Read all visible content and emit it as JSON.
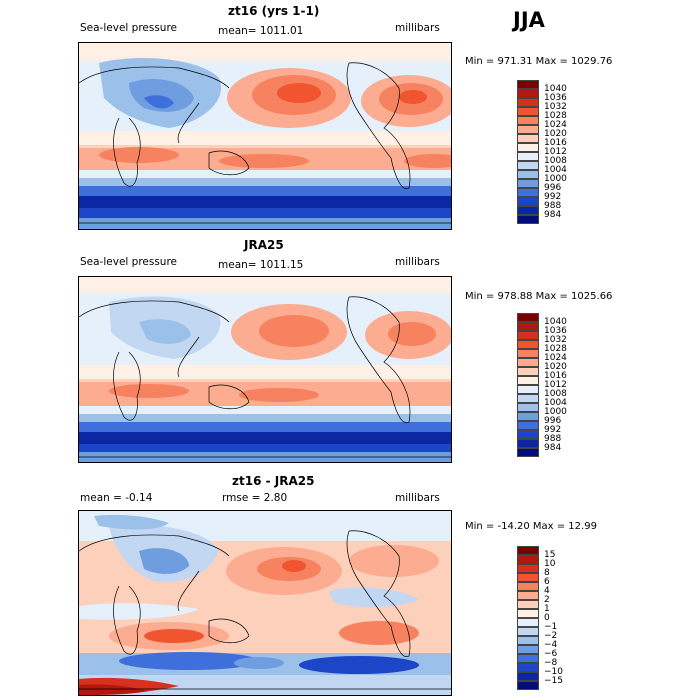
{
  "season": "JJA",
  "panels": [
    {
      "title": "zt16 (yrs 1-1)",
      "left": "Sea-level pressure",
      "center": "mean= 1011.01",
      "right": "millibars",
      "minmax": "Min = 971.31 Max = 1029.76",
      "colorbar": {
        "labels": [
          "1040",
          "1036",
          "1032",
          "1028",
          "1024",
          "1020",
          "1016",
          "1012",
          "1008",
          "1004",
          "1000",
          "996",
          "992",
          "988",
          "984"
        ],
        "colors": [
          "#7a0000",
          "#b2180c",
          "#d7301f",
          "#f0552f",
          "#f7825f",
          "#fcac90",
          "#fdd0bc",
          "#fff0e5",
          "#e5f0fb",
          "#c2d8f2",
          "#9bc0ea",
          "#6f9ee0",
          "#3f6fdb",
          "#1c45c8",
          "#0a28a4",
          "#000c7a"
        ]
      }
    },
    {
      "title": "JRA25",
      "left": "Sea-level pressure",
      "center": "mean= 1011.15",
      "right": "millibars",
      "minmax": "Min = 978.88 Max = 1025.66",
      "colorbar": {
        "labels": [
          "1040",
          "1036",
          "1032",
          "1028",
          "1024",
          "1020",
          "1016",
          "1012",
          "1008",
          "1004",
          "1000",
          "996",
          "992",
          "988",
          "984"
        ],
        "colors": [
          "#7a0000",
          "#b2180c",
          "#d7301f",
          "#f0552f",
          "#f7825f",
          "#fcac90",
          "#fdd0bc",
          "#fff0e5",
          "#e5f0fb",
          "#c2d8f2",
          "#9bc0ea",
          "#6f9ee0",
          "#3f6fdb",
          "#1c45c8",
          "#0a28a4",
          "#000c7a"
        ]
      }
    },
    {
      "title": "zt16 - JRA25",
      "left": "mean =   -0.14",
      "center": "rmse =    2.80",
      "right": "millibars",
      "minmax": "Min = -14.20 Max =   12.99",
      "colorbar": {
        "labels": [
          "15",
          "10",
          "8",
          "6",
          "4",
          "2",
          "1",
          "0",
          "−1",
          "−2",
          "−4",
          "−6",
          "−8",
          "−10",
          "−15"
        ],
        "colors": [
          "#7a0000",
          "#b2180c",
          "#d7301f",
          "#f0552f",
          "#f7825f",
          "#fcac90",
          "#fdd0bc",
          "#fff0e5",
          "#e5f0fb",
          "#c2d8f2",
          "#9bc0ea",
          "#6f9ee0",
          "#3f6fdb",
          "#1c45c8",
          "#0a28a4",
          "#000c7a"
        ]
      }
    }
  ],
  "colors": {
    "land_outline": "#000000"
  }
}
